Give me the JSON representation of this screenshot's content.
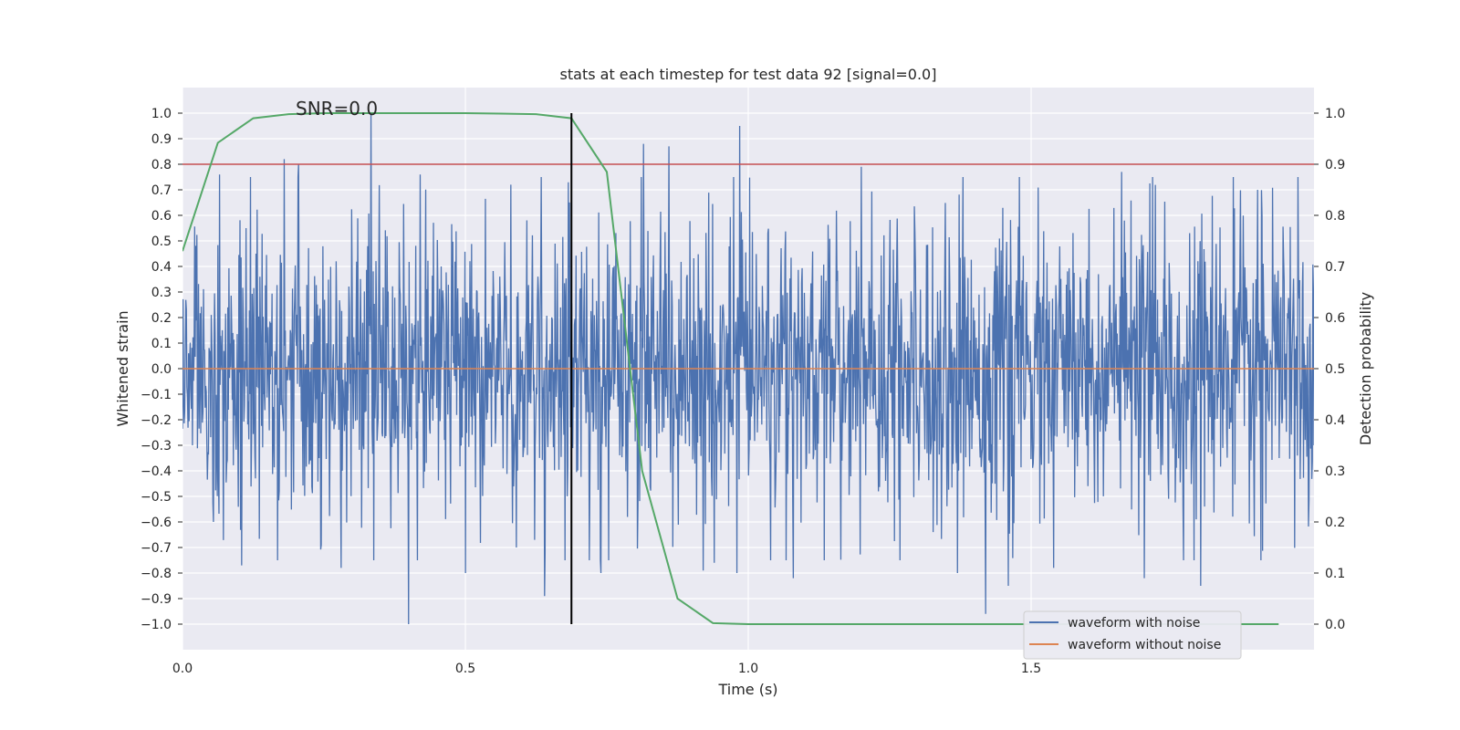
{
  "chart_data": {
    "type": "line",
    "title": "stats at each timestep for test data 92 [signal=0.0]",
    "xlabel": "Time (s)",
    "ylabel": "Whitened strain",
    "ylabel_right": "Detection probability",
    "xlim": [
      0.0,
      2.0
    ],
    "ylim": [
      -1.1,
      1.1
    ],
    "ylim_right": [
      -0.05,
      1.05
    ],
    "xticks": [
      0.0,
      0.5,
      1.0,
      1.5
    ],
    "xtick_labels": [
      "0.0",
      "0.5",
      "1.0",
      "1.5"
    ],
    "yticks": [
      -1.0,
      -0.9,
      -0.8,
      -0.7,
      -0.6,
      -0.5,
      -0.4,
      -0.3,
      -0.2,
      -0.1,
      0.0,
      0.1,
      0.2,
      0.3,
      0.4,
      0.5,
      0.6,
      0.7,
      0.8,
      0.9,
      1.0
    ],
    "ytick_labels": [
      "−1.0",
      "−0.9",
      "−0.8",
      "−0.7",
      "−0.6",
      "−0.5",
      "−0.4",
      "−0.3",
      "−0.2",
      "−0.1",
      "0.0",
      "0.1",
      "0.2",
      "0.3",
      "0.4",
      "0.5",
      "0.6",
      "0.7",
      "0.8",
      "0.9",
      "1.0"
    ],
    "yticks_right": [
      0.0,
      0.1,
      0.2,
      0.3,
      0.4,
      0.5,
      0.6,
      0.7,
      0.8,
      0.9,
      1.0
    ],
    "ytick_labels_right": [
      "0.0",
      "0.1",
      "0.2",
      "0.3",
      "0.4",
      "0.5",
      "0.6",
      "0.7",
      "0.8",
      "0.9",
      "1.0"
    ],
    "grid": true,
    "annotation": {
      "text": "SNR=0.0",
      "x": 0.2,
      "y": 1.0
    },
    "noise_series": {
      "name": "waveform with noise",
      "color": "#4c72b0",
      "n_points": 2048,
      "amplitude_range": [
        -1.0,
        1.0
      ],
      "seed": 92
    },
    "clean_series": {
      "name": "waveform without noise",
      "color": "#dd8452",
      "x": [
        0.0,
        2.0
      ],
      "y": [
        0.0,
        0.0
      ]
    },
    "probability_series": {
      "name": "Detection probability",
      "color": "#55a868",
      "x": [
        0.0,
        0.0625,
        0.125,
        0.1875,
        0.25,
        0.3125,
        0.375,
        0.4375,
        0.5,
        0.5625,
        0.625,
        0.6875,
        0.75,
        0.8125,
        0.875,
        0.9375,
        1.0,
        1.0625,
        1.125,
        1.1875,
        1.25,
        1.3125,
        1.375,
        1.4375,
        1.5,
        1.5625,
        1.625,
        1.6875,
        1.75,
        1.8125,
        1.875,
        1.9375
      ],
      "y": [
        0.73,
        0.942,
        0.99,
        0.998,
        1.0,
        1.0,
        1.0,
        1.0,
        1.0,
        0.999,
        0.998,
        0.99,
        0.885,
        0.3,
        0.05,
        0.002,
        0.0,
        0.0,
        0.0,
        0.0,
        0.0,
        0.0,
        0.0,
        0.0,
        0.0,
        0.0,
        0.0,
        0.0,
        0.0,
        0.0,
        0.0,
        0.0
      ]
    },
    "threshold_line": {
      "y_right": 0.9,
      "color": "#c44e52"
    },
    "vertical_marker": {
      "x": 0.6875,
      "y_range": [
        -1.0,
        1.0
      ],
      "color": "#000000"
    },
    "noise_spikes": [
      {
        "x": 0.333,
        "y": 1.0
      },
      {
        "x": 0.4,
        "y": -1.0
      },
      {
        "x": 0.18,
        "y": 0.82
      },
      {
        "x": 0.205,
        "y": 0.8
      },
      {
        "x": 0.245,
        "y": -0.69
      },
      {
        "x": 0.28,
        "y": -0.78
      },
      {
        "x": 0.105,
        "y": -0.77
      },
      {
        "x": 0.5,
        "y": -0.8
      },
      {
        "x": 0.64,
        "y": -0.89
      },
      {
        "x": 0.74,
        "y": -0.8
      },
      {
        "x": 0.815,
        "y": 0.88
      },
      {
        "x": 0.86,
        "y": 0.87
      },
      {
        "x": 0.92,
        "y": -0.79
      },
      {
        "x": 0.94,
        "y": -0.76
      },
      {
        "x": 0.98,
        "y": -0.8
      },
      {
        "x": 0.985,
        "y": 0.95
      },
      {
        "x": 1.08,
        "y": -0.82
      },
      {
        "x": 1.2,
        "y": 0.79
      },
      {
        "x": 1.37,
        "y": -0.8
      },
      {
        "x": 1.42,
        "y": -0.96
      },
      {
        "x": 1.46,
        "y": -0.85
      },
      {
        "x": 1.54,
        "y": -0.78
      },
      {
        "x": 1.66,
        "y": 0.77
      },
      {
        "x": 1.7,
        "y": -0.82
      },
      {
        "x": 1.8,
        "y": -0.85
      },
      {
        "x": 1.9,
        "y": 0.7
      },
      {
        "x": 0.065,
        "y": 0.76
      },
      {
        "x": 0.055,
        "y": -0.6
      },
      {
        "x": 0.42,
        "y": 0.76
      },
      {
        "x": 0.58,
        "y": 0.72
      },
      {
        "x": 0.59,
        "y": -0.7
      }
    ],
    "legend": {
      "location": "lower-right",
      "entries": [
        {
          "label": "waveform with noise",
          "color": "#4c72b0"
        },
        {
          "label": "waveform without noise",
          "color": "#dd8452"
        }
      ]
    }
  }
}
